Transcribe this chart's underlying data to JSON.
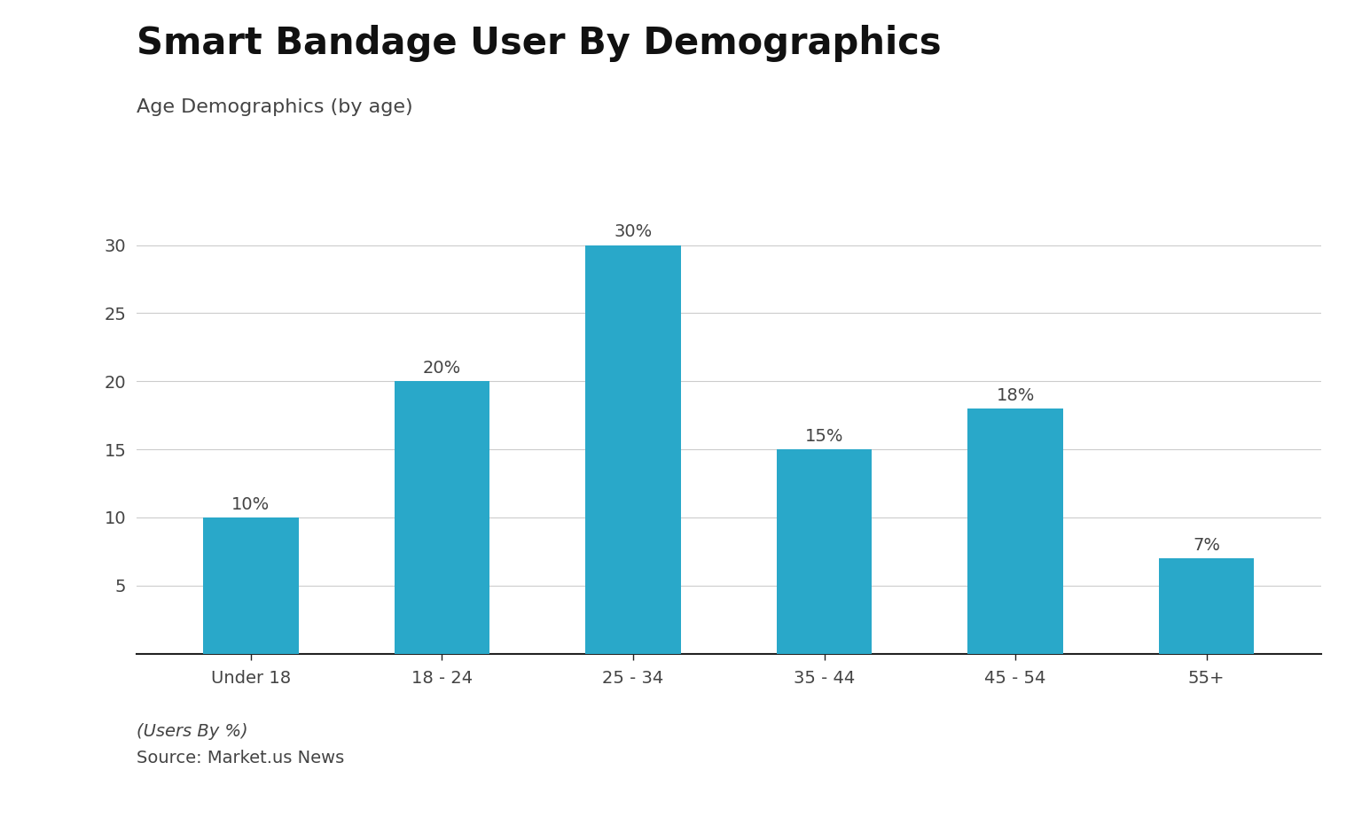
{
  "title": "Smart Bandage User By Demographics",
  "subtitle": "Age Demographics (by age)",
  "categories": [
    "Under 18",
    "18 - 24",
    "25 - 34",
    "35 - 44",
    "45 - 54",
    "55+"
  ],
  "values": [
    10,
    20,
    30,
    15,
    18,
    7
  ],
  "labels": [
    "10%",
    "20%",
    "30%",
    "15%",
    "18%",
    "7%"
  ],
  "bar_color": "#29A8C9",
  "background_color": "#ffffff",
  "ylim": [
    0,
    33
  ],
  "yticks": [
    5,
    10,
    15,
    20,
    25,
    30
  ],
  "ylabel": "",
  "xlabel": "",
  "footer_line1": "(Users By %)",
  "footer_line2": "Source: Market.us News",
  "title_fontsize": 30,
  "subtitle_fontsize": 16,
  "label_fontsize": 14,
  "tick_fontsize": 14,
  "footer_fontsize": 14,
  "grid_color": "#cccccc",
  "axis_color": "#222222",
  "text_color": "#444444",
  "title_color": "#111111"
}
